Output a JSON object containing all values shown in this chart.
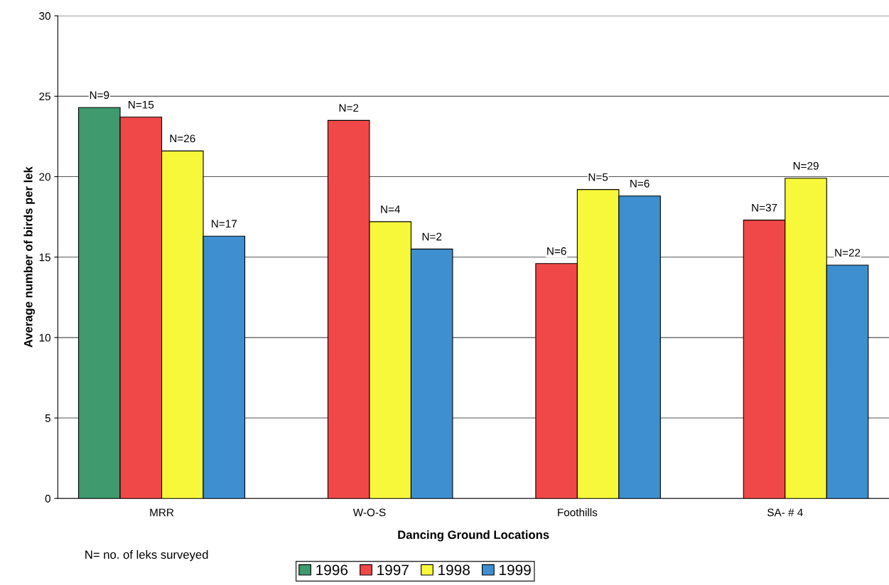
{
  "chart_data": {
    "type": "bar",
    "xlabel": "Dancing Ground Locations",
    "ylabel": "Average number of birds per lek",
    "categories": [
      "MRR",
      "W-O-S",
      "Foothills",
      "SA- # 4"
    ],
    "series": [
      {
        "name": "1996",
        "color": "#3f9a6e",
        "values": [
          24.3,
          null,
          null,
          null
        ]
      },
      {
        "name": "1997",
        "color": "#f04848",
        "values": [
          23.7,
          23.5,
          14.6,
          17.3
        ]
      },
      {
        "name": "1998",
        "color": "#f8f83a",
        "values": [
          21.6,
          17.2,
          19.2,
          19.9
        ]
      },
      {
        "name": "1999",
        "color": "#3d8fd0",
        "values": [
          16.3,
          15.5,
          18.8,
          14.5
        ]
      }
    ],
    "ylim": [
      0,
      30
    ],
    "yticks": [
      0,
      5,
      10,
      15,
      20,
      25,
      30
    ],
    "grid": "y",
    "legend": "bottom",
    "annotations": [
      "N=9",
      "N=15",
      "N=26",
      "N=17",
      "N=2",
      "N=4",
      "N=2",
      "N=6",
      "N=5",
      "N=6",
      "N=37",
      "N=29",
      "N=22",
      "N= no. of leks surveyed"
    ]
  }
}
